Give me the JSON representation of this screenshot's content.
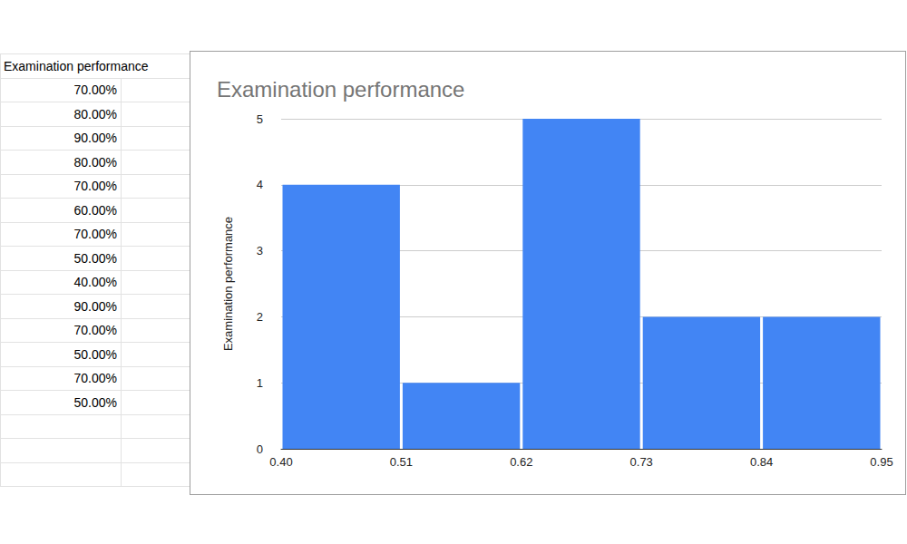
{
  "table": {
    "header": "Examination performance",
    "rows": [
      "70.00%",
      "80.00%",
      "90.00%",
      "80.00%",
      "70.00%",
      "60.00%",
      "70.00%",
      "50.00%",
      "40.00%",
      "90.00%",
      "70.00%",
      "50.00%",
      "70.00%",
      "50.00%"
    ]
  },
  "chart_data": {
    "type": "histogram",
    "title": "Examination performance",
    "ylabel": "Examination performance",
    "bins": [
      0.4,
      0.51,
      0.62,
      0.73,
      0.84,
      0.95
    ],
    "values": [
      4,
      1,
      5,
      2,
      2
    ],
    "color": "#4285f4",
    "xlim": [
      0.4,
      0.95
    ],
    "xticks": [
      {
        "value": 0.4,
        "label": "0.40"
      },
      {
        "value": 0.51,
        "label": "0.51"
      },
      {
        "value": 0.62,
        "label": "0.62"
      },
      {
        "value": 0.73,
        "label": "0.73"
      },
      {
        "value": 0.84,
        "label": "0.84"
      },
      {
        "value": 0.95,
        "label": "0.95"
      }
    ],
    "ylim": [
      0,
      5
    ],
    "yticks": [
      0,
      1,
      2,
      3,
      4,
      5
    ],
    "grid": true
  }
}
